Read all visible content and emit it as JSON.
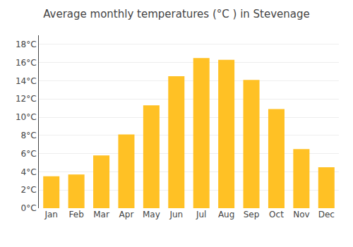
{
  "chart_data": {
    "type": "bar",
    "title": "Average monthly temperatures (°C ) in Stevenage",
    "categories": [
      "Jan",
      "Feb",
      "Mar",
      "Apr",
      "May",
      "Jun",
      "Jul",
      "Aug",
      "Sep",
      "Oct",
      "Nov",
      "Dec"
    ],
    "values": [
      3.5,
      3.7,
      5.8,
      8.1,
      11.3,
      14.5,
      16.5,
      16.3,
      14.1,
      10.9,
      6.5,
      4.5
    ],
    "color": "#FFC125",
    "ylim": [
      0,
      19
    ],
    "yticks": [
      {
        "value": 0,
        "label": "0°C"
      },
      {
        "value": 2,
        "label": "2°C"
      },
      {
        "value": 4,
        "label": "4°C"
      },
      {
        "value": 6,
        "label": "6°C"
      },
      {
        "value": 8,
        "label": "8°C"
      },
      {
        "value": 10,
        "label": "10°C"
      },
      {
        "value": 12,
        "label": "12°C"
      },
      {
        "value": 14,
        "label": "14°C"
      },
      {
        "value": 16,
        "label": "16°C"
      },
      {
        "value": 18,
        "label": "18°C"
      }
    ],
    "grid": true
  }
}
